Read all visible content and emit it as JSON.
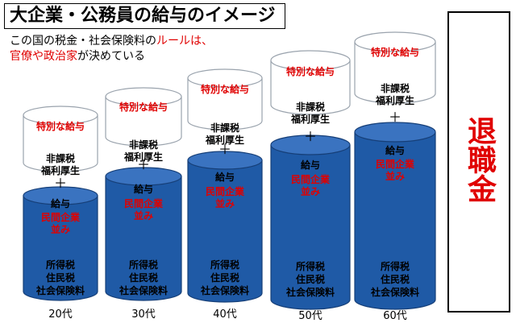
{
  "title": "大企業・公務員の給与のイメージ",
  "subtitle": {
    "line1_black": "この国の税金・社会保険料の",
    "line1_red": "ルールは、",
    "line2_red": "官僚や政治家",
    "line2_black": "が決めている"
  },
  "retirement": "退職金",
  "plus_sign": "＋",
  "labels": {
    "special": "特別な給与",
    "nontax_1": "非課税",
    "nontax_2": "福利厚生",
    "salary": "給与",
    "private_1": "民間企業",
    "private_2": "並み",
    "tax_1": "所得税",
    "tax_2": "住民税",
    "tax_3": "社会保険料"
  },
  "columns": [
    {
      "age": "20代"
    },
    {
      "age": "30代"
    },
    {
      "age": "40代"
    },
    {
      "age": "50代"
    },
    {
      "age": "60代"
    }
  ],
  "colors": {
    "blue": "#1f5aa6",
    "red": "#e00000"
  }
}
